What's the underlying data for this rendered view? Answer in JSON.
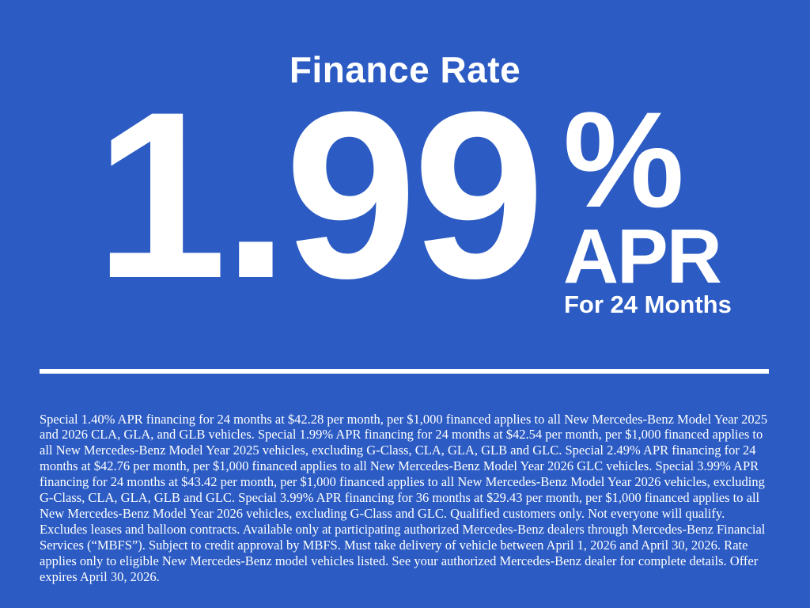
{
  "colors": {
    "background": "#2b5bc3",
    "foreground": "#ffffff"
  },
  "banner": {
    "title": "Finance Rate",
    "rate_value": "1.99",
    "percent_sign": "%",
    "rate_unit": "APR",
    "term": "For 24 Months",
    "disclaimer": "Special 1.40% APR financing for 24 months at $42.28 per month, per $1,000 financed applies to all New Mercedes-Benz Model Year 2025 and 2026 CLA, GLA, and GLB vehicles. Special 1.99% APR financing for 24 months at $42.54 per month, per $1,000 financed applies to all New Mercedes-Benz Model Year 2025 vehicles, excluding G-Class, CLA, GLA, GLB and GLC. Special 2.49% APR financing for 24 months at $42.76 per month, per $1,000 financed applies to all New Mercedes-Benz Model Year 2026 GLC vehicles. Special 3.99% APR financing for 24 months at $43.42 per month, per $1,000 financed applies to all New Mercedes-Benz Model Year 2026 vehicles, excluding G-Class, CLA, GLA, GLB and GLC. Special 3.99% APR financing for 36 months at $29.43 per month, per $1,000 financed applies to all New Mercedes-Benz Model Year 2026 vehicles, excluding G-Class and GLC. Qualified customers only. Not everyone will qualify. Excludes leases and balloon contracts. Available only at participating authorized Mercedes-Benz dealers through Mercedes-Benz Financial Services (“MBFS”). Subject to credit approval by MBFS. Must take delivery of vehicle between April 1, 2026 and April 30, 2026. Rate applies only to eligible New Mercedes-Benz model vehicles listed. See your authorized Mercedes-Benz dealer for complete details. Offer expires April 30, 2026."
  }
}
